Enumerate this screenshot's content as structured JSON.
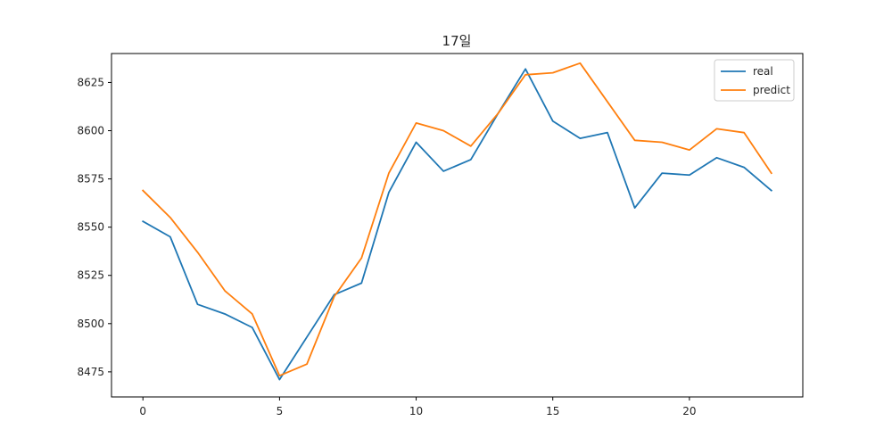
{
  "chart_data": {
    "type": "line",
    "title": "17일",
    "xlabel": "",
    "ylabel": "",
    "xlim": [
      -1.15,
      24.15
    ],
    "ylim": [
      8462,
      8640
    ],
    "x_ticks": [
      0,
      5,
      10,
      15,
      20
    ],
    "y_ticks": [
      8475,
      8500,
      8525,
      8550,
      8575,
      8600,
      8625
    ],
    "grid": false,
    "legend": "top-right",
    "x": [
      0,
      1,
      2,
      3,
      4,
      5,
      6,
      7,
      8,
      9,
      10,
      11,
      12,
      13,
      14,
      15,
      16,
      17,
      18,
      19,
      20,
      21,
      22,
      23
    ],
    "series": [
      {
        "name": "real",
        "color": "#1f77b4",
        "values": [
          8553,
          8545,
          8510,
          8505,
          8498,
          8471,
          8493,
          8515,
          8521,
          8568,
          8594,
          8579,
          8585,
          8609,
          8632,
          8605,
          8596,
          8599,
          8560,
          8578,
          8577,
          8586,
          8581,
          8569
        ]
      },
      {
        "name": "predict",
        "color": "#ff7f0e",
        "values": [
          8569,
          8555,
          8537,
          8517,
          8505,
          8473,
          8479,
          8514,
          8534,
          8578,
          8604,
          8600,
          8592,
          8609,
          8629,
          8630,
          8635,
          8615,
          8595,
          8594,
          8590,
          8601,
          8599,
          8578
        ]
      }
    ]
  }
}
